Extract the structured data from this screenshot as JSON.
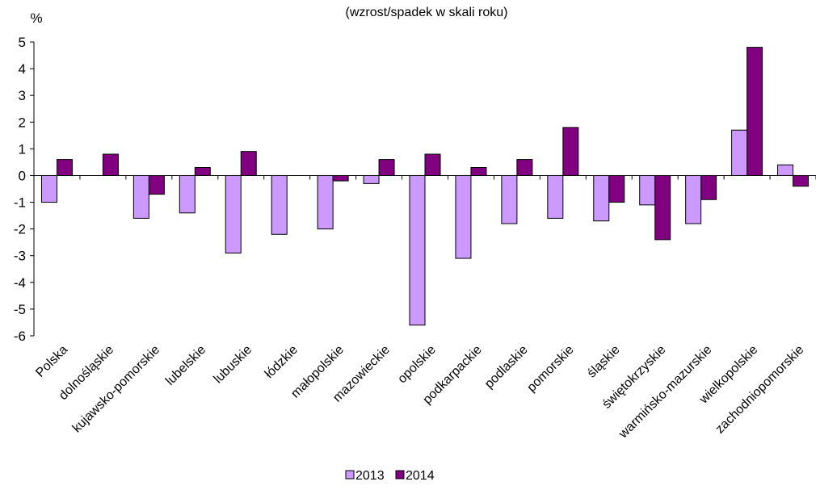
{
  "chart_data": {
    "type": "bar",
    "subtitle": "(wzrost/spadek w skali roku)",
    "ylabel": "%",
    "ylim": [
      -6,
      5
    ],
    "yticks": [
      5,
      4,
      3,
      2,
      1,
      0,
      -1,
      -2,
      -3,
      -4,
      -5,
      -6
    ],
    "grid": false,
    "legend_position": "bottom",
    "categories": [
      "Polska",
      "dolnośląskie",
      "kujawsko-pomorskie",
      "lubelskie",
      "lubuskie",
      "łódzkie",
      "małopolskie",
      "mazowieckie",
      "opolskie",
      "podkarpackie",
      "podlaskie",
      "pomorskie",
      "śląskie",
      "świętokrzyskie",
      "warmińsko-mazurskie",
      "wielkopolskie",
      "zachodniopomorskie"
    ],
    "series": [
      {
        "name": "2013",
        "color": "#cc99ff",
        "values": [
          -1.0,
          0.0,
          -1.6,
          -1.4,
          -2.9,
          -2.2,
          -2.0,
          -0.3,
          -5.6,
          -3.1,
          -1.8,
          -1.6,
          -1.7,
          -1.1,
          -1.8,
          1.7,
          0.4
        ]
      },
      {
        "name": "2014",
        "color": "#800080",
        "values": [
          0.6,
          0.8,
          -0.7,
          0.3,
          0.9,
          0.0,
          -0.2,
          0.6,
          0.8,
          0.3,
          0.6,
          1.8,
          -1.0,
          -2.4,
          -0.9,
          4.8,
          -0.4
        ]
      }
    ]
  }
}
